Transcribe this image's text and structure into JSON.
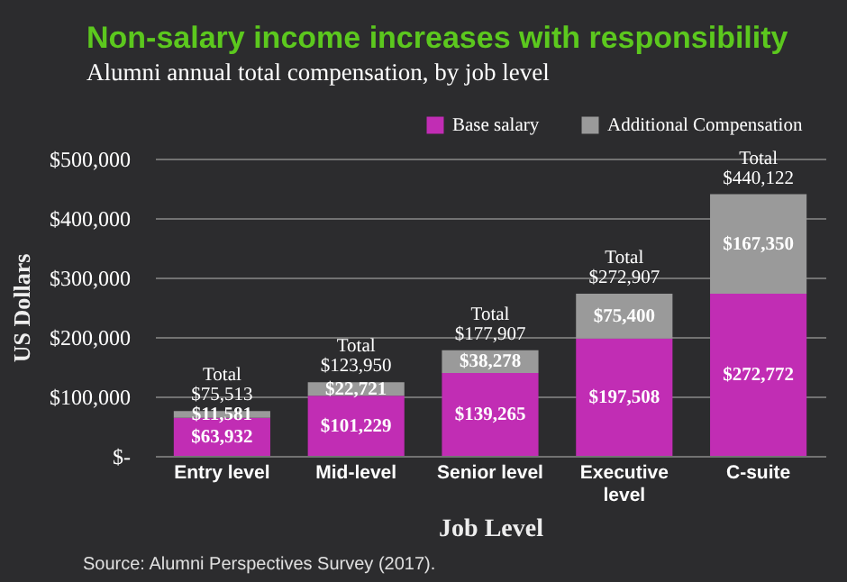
{
  "chart_data": {
    "type": "bar",
    "title": "Non-salary income increases with responsibility",
    "subtitle": "Alumni annual total compensation, by job level",
    "xlabel": "Job Level",
    "ylabel": "US Dollars",
    "categories": [
      "Entry level",
      "Mid-level",
      "Senior level",
      "Executive level",
      "C-suite"
    ],
    "series": [
      {
        "name": "Base salary",
        "color": "#c12db4",
        "values": [
          63932,
          101229,
          139265,
          197508,
          272772
        ],
        "value_labels": [
          "$63,932",
          "$101,229",
          "$139,265",
          "$197,508",
          "$272,772"
        ]
      },
      {
        "name": "Additional Compensation",
        "color": "#9a9a9a",
        "values": [
          11581,
          22721,
          38278,
          75400,
          167350
        ],
        "value_labels": [
          "$11,581",
          "$22,721",
          "$38,278",
          "$75,400",
          "$167,350"
        ]
      }
    ],
    "stacked": true,
    "totals": [
      "Total\n$75,513",
      "Total\n$123,950",
      "Total\n$177,907",
      "Total\n$272,907",
      "Total\n$440,122"
    ],
    "ylim": [
      0,
      500000
    ],
    "yticks": [
      {
        "value": 0,
        "label": "$-"
      },
      {
        "value": 100000,
        "label": "$100,000"
      },
      {
        "value": 200000,
        "label": "$200,000"
      },
      {
        "value": 300000,
        "label": "$300,000"
      },
      {
        "value": 400000,
        "label": "$400,000"
      },
      {
        "value": 500000,
        "label": "$500,000"
      }
    ],
    "grid": "y",
    "legend": "top right",
    "annotations": [
      "Source: Alumni Perspectives Survey (2017)."
    ]
  }
}
